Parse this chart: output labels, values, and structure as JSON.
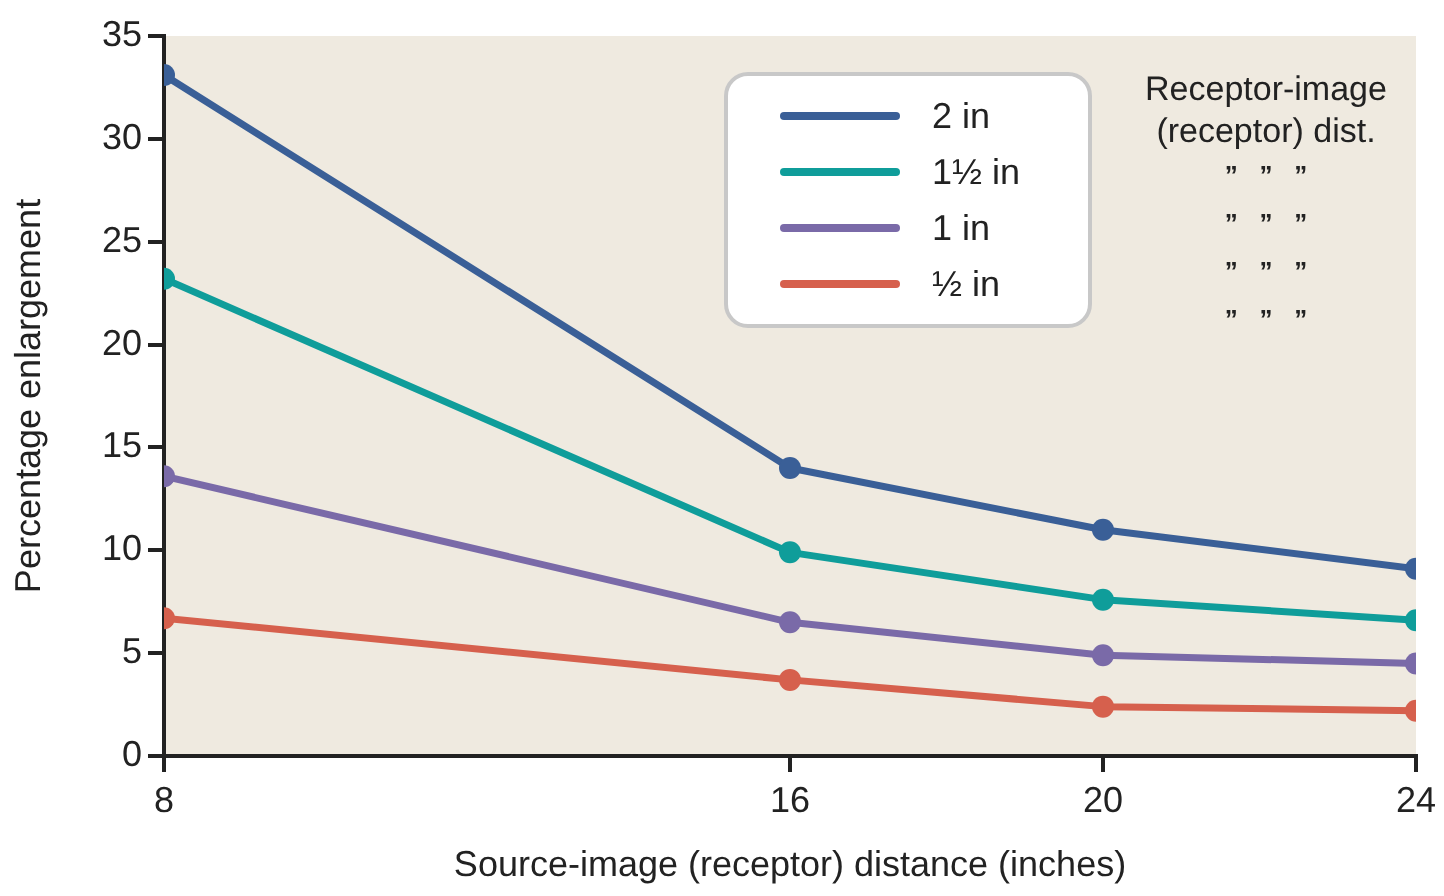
{
  "chart_data": {
    "type": "line",
    "xlabel": "Source-image (receptor) distance (inches)",
    "ylabel": "Percentage enlargement",
    "legend_title": "Receptor-image (receptor) dist.",
    "annotations": [
      "”   ”   ”",
      "”   ”   ”",
      "”   ”   ”",
      "”   ”   ”"
    ],
    "x": [
      8,
      16,
      20,
      24
    ],
    "xlim": [
      8,
      24
    ],
    "xticks": [
      8,
      16,
      20,
      24
    ],
    "ylim": [
      0,
      35
    ],
    "yticks": [
      0,
      5,
      10,
      15,
      20,
      25,
      30,
      35
    ],
    "legend": "top right",
    "marker": "circle",
    "line_style": "solid",
    "series": [
      {
        "name": "2 in",
        "color": "#3a5f97",
        "values": [
          33.1,
          14.0,
          11.0,
          9.1
        ]
      },
      {
        "name": "1½ in",
        "color": "#0f9d9a",
        "values": [
          23.2,
          9.9,
          7.6,
          6.6
        ]
      },
      {
        "name": "1 in",
        "color": "#7a6aa8",
        "values": [
          13.6,
          6.5,
          4.9,
          4.5
        ]
      },
      {
        "name": "½ in",
        "color": "#d6604d",
        "values": [
          6.7,
          3.7,
          2.4,
          2.2
        ]
      }
    ]
  }
}
